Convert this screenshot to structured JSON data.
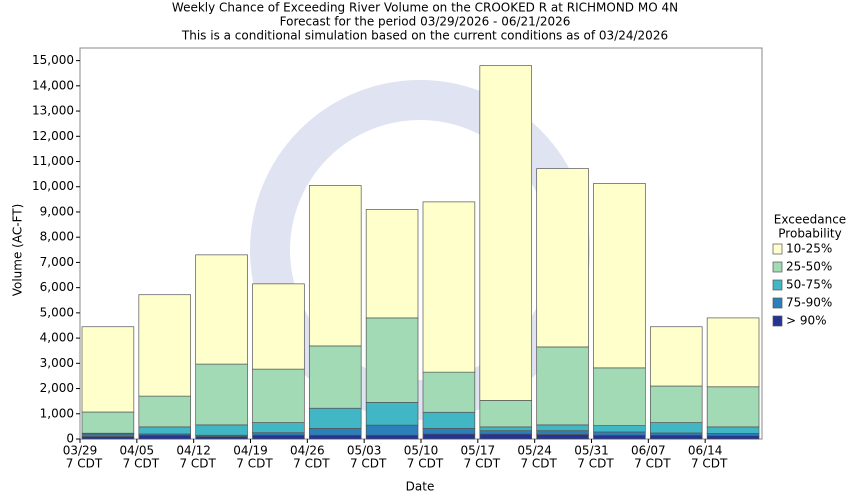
{
  "chart_data": {
    "type": "stacked_bar",
    "title": "Weekly Chance of Exceeding River Volume on the CROOKED R at RICHMOND MO 4N",
    "subtitle": "Forecast for the period 03/29/2026 - 06/21/2026",
    "note": "This is a conditional simulation based on the current conditions as of 03/24/2026",
    "x_label": "Date",
    "y_label": "Volume (AC-FT)",
    "categories": [
      [
        "03/29",
        "7 CDT"
      ],
      [
        "04/05",
        "7 CDT"
      ],
      [
        "04/12",
        "7 CDT"
      ],
      [
        "04/19",
        "7 CDT"
      ],
      [
        "04/26",
        "7 CDT"
      ],
      [
        "05/03",
        "7 CDT"
      ],
      [
        "05/10",
        "7 CDT"
      ],
      [
        "05/17",
        "7 CDT"
      ],
      [
        "05/24",
        "7 CDT"
      ],
      [
        "05/31",
        "7 CDT"
      ],
      [
        "06/07",
        "7 CDT"
      ],
      [
        "06/14",
        "7 CDT"
      ]
    ],
    "legend_title": [
      "Exceedance",
      "Probability"
    ],
    "series": [
      {
        "name": "> 90%",
        "color": "#253494",
        "values": [
          100,
          150,
          100,
          150,
          150,
          150,
          200,
          200,
          180,
          150,
          150,
          130
        ]
      },
      {
        "name": "75-90%",
        "color": "#2c7fb8",
        "values": [
          100,
          50,
          50,
          100,
          270,
          400,
          220,
          130,
          150,
          130,
          90,
          90
        ]
      },
      {
        "name": "50-75%",
        "color": "#41b6c4",
        "values": [
          30,
          280,
          410,
          400,
          800,
          900,
          640,
          150,
          230,
          250,
          410,
          260
        ]
      },
      {
        "name": "25-50%",
        "color": "#a1dab4",
        "values": [
          840,
          1220,
          2410,
          2120,
          2470,
          3350,
          1590,
          1050,
          3090,
          2290,
          1450,
          1590
        ]
      },
      {
        "name": "10-25%",
        "color": "#ffffcc",
        "values": [
          3380,
          4020,
          4330,
          3380,
          6360,
          4300,
          6750,
          13270,
          7070,
          7310,
          2350,
          2730
        ]
      }
    ],
    "ylim": [
      0,
      15500
    ],
    "yticks": [
      0,
      {
        "value": 1000,
        "label": "1,000"
      },
      {
        "value": 2000,
        "label": "2,000"
      },
      {
        "value": 3000,
        "label": "3,000"
      },
      {
        "value": 4000,
        "label": "4,000"
      },
      {
        "value": 5000,
        "label": "5,000"
      },
      {
        "value": 6000,
        "label": "6,000"
      },
      {
        "value": 7000,
        "label": "7,000"
      },
      {
        "value": 8000,
        "label": "8,000"
      },
      {
        "value": 9000,
        "label": "9,000"
      },
      {
        "value": 10000,
        "label": "10,000"
      },
      {
        "value": 11000,
        "label": "11,000"
      },
      {
        "value": 12000,
        "label": "12,000"
      },
      {
        "value": 13000,
        "label": "13,000"
      },
      {
        "value": 14000,
        "label": "14,000"
      },
      {
        "value": 15000,
        "label": "15,000"
      }
    ]
  }
}
